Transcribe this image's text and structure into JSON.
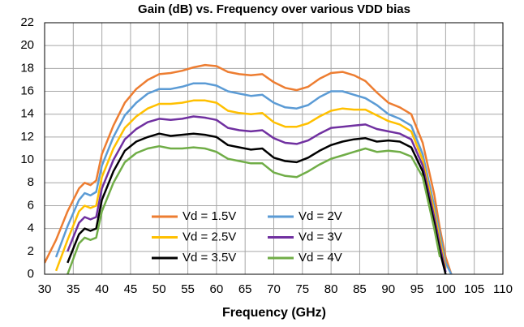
{
  "chart_data": {
    "type": "line",
    "title": "Gain (dB) vs. Frequency over various VDD bias",
    "x_label": "Frequency (GHz)",
    "x": [
      30,
      32,
      34,
      36,
      37,
      38,
      39,
      40,
      42,
      44,
      46,
      48,
      50,
      52,
      54,
      56,
      58,
      60,
      62,
      64,
      66,
      68,
      70,
      72,
      74,
      76,
      78,
      80,
      82,
      84,
      86,
      88,
      90,
      92,
      94,
      96,
      98,
      99,
      100,
      101,
      102
    ],
    "series": [
      {
        "name": "Vd = 1.5V",
        "color": "#ED7D31",
        "values": [
          1,
          3,
          5.5,
          7.5,
          8,
          7.8,
          8.2,
          10.5,
          13,
          15,
          16.2,
          17,
          17.5,
          17.6,
          17.8,
          18.1,
          18.3,
          18.2,
          17.7,
          17.5,
          17.4,
          17.5,
          16.8,
          16.3,
          16.1,
          16.4,
          17.1,
          17.6,
          17.7,
          17.4,
          16.9,
          15.9,
          15,
          14.6,
          14,
          11.5,
          7,
          4,
          1.5,
          0,
          null
        ]
      },
      {
        "name": "Vd = 2V",
        "color": "#5B9BD5",
        "values": [
          null,
          1.5,
          4.2,
          6.5,
          7.1,
          6.9,
          7.2,
          9.5,
          12,
          13.9,
          15,
          15.8,
          16.2,
          16.2,
          16.4,
          16.7,
          16.7,
          16.5,
          16,
          15.8,
          15.6,
          15.7,
          15,
          14.6,
          14.5,
          14.8,
          15.5,
          16,
          16,
          15.7,
          15.4,
          14.8,
          14,
          13.6,
          13,
          10.5,
          6,
          3.5,
          1,
          0,
          null
        ]
      },
      {
        "name": "Vd = 2.5V",
        "color": "#FFC000",
        "values": [
          null,
          0.3,
          3,
          5.5,
          6,
          5.8,
          6,
          8.5,
          11,
          12.8,
          13.8,
          14.5,
          14.9,
          14.9,
          15,
          15.2,
          15.2,
          15,
          14.3,
          14.1,
          14,
          14.1,
          13.3,
          12.9,
          12.9,
          13.2,
          13.8,
          14.3,
          14.5,
          14.4,
          14.4,
          13.9,
          13.4,
          13.1,
          12.5,
          10,
          5.5,
          3,
          0.5,
          null,
          null
        ]
      },
      {
        "name": "Vd = 3V",
        "color": "#7030A0",
        "values": [
          null,
          null,
          2,
          4.5,
          5,
          4.8,
          5,
          7.5,
          10,
          11.8,
          12.7,
          13.3,
          13.6,
          13.5,
          13.6,
          13.8,
          13.7,
          13.5,
          12.8,
          12.6,
          12.5,
          12.6,
          11.9,
          11.5,
          11.4,
          11.7,
          12.3,
          12.8,
          12.9,
          13,
          13.1,
          12.7,
          12.5,
          12.3,
          11.8,
          9.5,
          5,
          2.5,
          0.2,
          null,
          null
        ]
      },
      {
        "name": "Vd = 3.5V",
        "color": "#000000",
        "values": [
          null,
          null,
          1,
          3.5,
          4,
          3.8,
          4,
          6.5,
          9,
          10.8,
          11.6,
          12,
          12.3,
          12.1,
          12.2,
          12.3,
          12.2,
          12,
          11.3,
          11.1,
          10.9,
          11,
          10.2,
          9.9,
          9.8,
          10.2,
          10.8,
          11.3,
          11.6,
          11.8,
          11.9,
          11.6,
          11.7,
          11.6,
          11.1,
          9,
          4.5,
          2,
          0,
          null,
          null
        ]
      },
      {
        "name": "Vd = 4V",
        "color": "#70AD47",
        "values": [
          null,
          null,
          0,
          2.7,
          3.2,
          3,
          3.2,
          5.5,
          8,
          9.8,
          10.6,
          11,
          11.2,
          11,
          11,
          11.1,
          11,
          10.7,
          10.1,
          9.9,
          9.7,
          9.7,
          8.9,
          8.6,
          8.5,
          9,
          9.6,
          10.1,
          10.4,
          10.7,
          11,
          10.7,
          10.8,
          10.7,
          10.3,
          8.5,
          4,
          1.5,
          null,
          null,
          null
        ]
      }
    ],
    "xlim": [
      30,
      110
    ],
    "xticks": [
      30,
      35,
      40,
      45,
      50,
      55,
      60,
      65,
      70,
      75,
      80,
      85,
      90,
      95,
      100,
      105,
      110
    ],
    "ylim": [
      0,
      22
    ],
    "yticks": [
      0,
      2,
      4,
      6,
      8,
      10,
      12,
      14,
      16,
      18,
      20,
      22
    ],
    "grid": true
  }
}
